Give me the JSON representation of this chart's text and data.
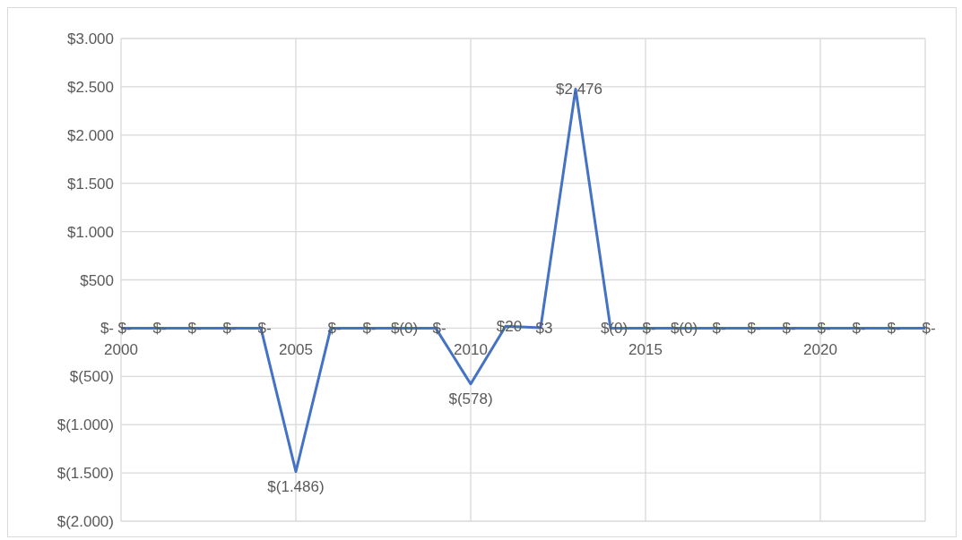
{
  "chart_data": {
    "type": "line",
    "x": [
      2000,
      2001,
      2002,
      2003,
      2004,
      2005,
      2006,
      2007,
      2008,
      2009,
      2010,
      2011,
      2012,
      2013,
      2014,
      2015,
      2016,
      2017,
      2018,
      2019,
      2020,
      2021,
      2022,
      2023
    ],
    "series": [
      {
        "color": "#4472c4",
        "values": [
          0,
          0,
          0,
          0,
          0,
          -1486,
          0,
          0,
          -0.3,
          0,
          -578,
          20,
          3,
          2476,
          -0.3,
          0,
          -0.3,
          0,
          0,
          0,
          0,
          0,
          0,
          0
        ],
        "value_labels": [
          "$-",
          "$-",
          "$-",
          "$-",
          "$-",
          "$(1.486)",
          "$-",
          "$-",
          "$(0)",
          "$-",
          "$(578)",
          "$20",
          "$3",
          "$2.476",
          "$(0)",
          "$-",
          "$(0)",
          "$-",
          "$-",
          "$-",
          "$-",
          "$-",
          "$-",
          "$-"
        ]
      }
    ],
    "xlim": [
      2000,
      2023
    ],
    "xticks": [
      2000,
      2005,
      2010,
      2015,
      2020
    ],
    "ylim": [
      -2000,
      3000
    ],
    "yticks": [
      {
        "value": -2000,
        "label": "$(2.000)"
      },
      {
        "value": -1500,
        "label": "$(1.500)"
      },
      {
        "value": -1000,
        "label": "$(1.000)"
      },
      {
        "value": -500,
        "label": "$(500)"
      },
      {
        "value": 0,
        "label": "$-"
      },
      {
        "value": 500,
        "label": "$500"
      },
      {
        "value": 1000,
        "label": "$1.000"
      },
      {
        "value": 1500,
        "label": "$1.500"
      },
      {
        "value": 2000,
        "label": "$2.000"
      },
      {
        "value": 2500,
        "label": "$2.500"
      },
      {
        "value": 3000,
        "label": "$3.000"
      }
    ],
    "grid": true,
    "legend": false,
    "marker": "none",
    "line_style": "solid"
  }
}
